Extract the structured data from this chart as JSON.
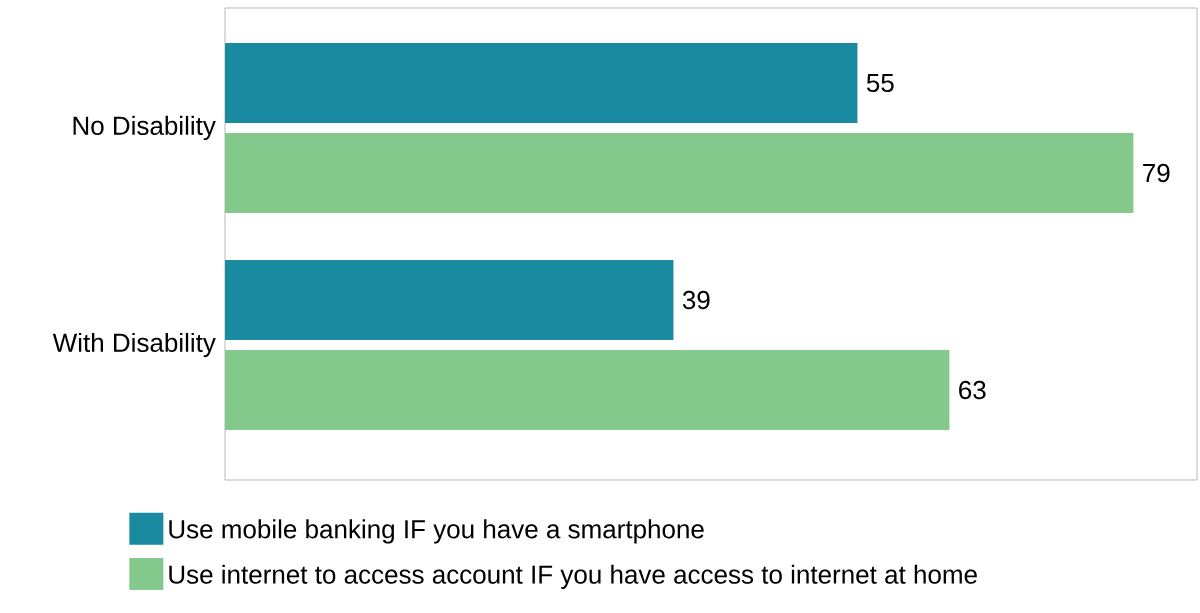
{
  "chart_data": {
    "type": "bar",
    "orientation": "horizontal",
    "categories": [
      "No Disability",
      "With Disability"
    ],
    "series": [
      {
        "name": "Use mobile banking IF you have a smartphone",
        "color": "#1a8aa0",
        "values": [
          55,
          39
        ]
      },
      {
        "name": "Use internet to access account IF you have access to internet at home",
        "color": "#84c98c",
        "values": [
          79,
          63
        ]
      }
    ],
    "data_labels": true,
    "legend": "bottom",
    "tick_labels": "y"
  }
}
